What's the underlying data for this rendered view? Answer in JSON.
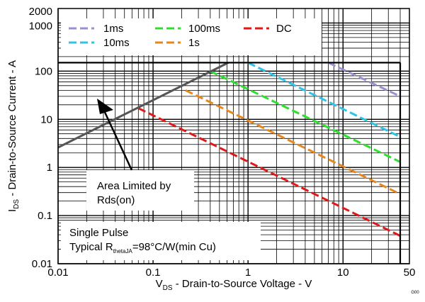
{
  "chart_data": {
    "type": "line",
    "xscale": "log",
    "yscale": "log",
    "xlim": [
      0.01,
      50
    ],
    "ylim": [
      0.01,
      2000
    ],
    "grid": true,
    "x_ticks": [
      {
        "value": 0.01,
        "label": "0.01"
      },
      {
        "value": 0.1,
        "label": "0.1"
      },
      {
        "value": 1,
        "label": "1"
      },
      {
        "value": 10,
        "label": "10"
      },
      {
        "value": 50,
        "label": "50"
      }
    ],
    "y_ticks": [
      {
        "value": 0.01,
        "label": "0.01"
      },
      {
        "value": 0.1,
        "label": "0.1"
      },
      {
        "value": 1,
        "label": "1"
      },
      {
        "value": 10,
        "label": "10"
      },
      {
        "value": 100,
        "label": "100"
      },
      {
        "value": 1000,
        "label": "1000"
      },
      {
        "value": 2000,
        "label": "2000"
      }
    ],
    "xlabel": {
      "main": "V",
      "sub": "DS",
      "rest": " - Drain-to-Source Voltage - V"
    },
    "ylabel": {
      "main": "I",
      "sub": "DS",
      "rest": " - Drain-to-Source Current - A"
    },
    "legend_position": "top",
    "series": [
      {
        "name": "1ms",
        "color": "#9b8fd6",
        "dashed": true,
        "x": [
          7,
          40
        ],
        "y": [
          150,
          30
        ]
      },
      {
        "name": "10ms",
        "color": "#2ec3e8",
        "dashed": true,
        "x": [
          1,
          40
        ],
        "y": [
          150,
          4.3
        ]
      },
      {
        "name": "100ms",
        "color": "#2ee02e",
        "dashed": true,
        "x": [
          0.4,
          40
        ],
        "y": [
          100,
          1.3
        ]
      },
      {
        "name": "1s",
        "color": "#e8861a",
        "dashed": true,
        "x": [
          0.22,
          40
        ],
        "y": [
          40,
          0.28
        ]
      },
      {
        "name": "DC",
        "color": "#e01818",
        "dashed": true,
        "x": [
          0.07,
          40
        ],
        "y": [
          17,
          0.038
        ]
      }
    ],
    "limit_lines": [
      {
        "kind": "rds-on",
        "color": "#555555",
        "x": [
          0.01,
          0.62
        ],
        "y": [
          2.6,
          150
        ]
      },
      {
        "kind": "current-limit",
        "color": "#000000",
        "x": [
          0.01,
          40
        ],
        "y": [
          150,
          150
        ]
      },
      {
        "kind": "voltage-limit",
        "color": "#000000",
        "x": [
          40,
          40
        ],
        "y": [
          0.01,
          150
        ]
      }
    ],
    "annotations": [
      {
        "kind": "rds",
        "lines": [
          "Area Limited by",
          "Rds(on)"
        ]
      },
      {
        "kind": "pulse",
        "line1": "Single Pulse",
        "line2_pre": "Typical R",
        "line2_sub": "thetaJA",
        "line2_post": "=98°C/W(min Cu)"
      }
    ],
    "corner_mark": "G00"
  }
}
